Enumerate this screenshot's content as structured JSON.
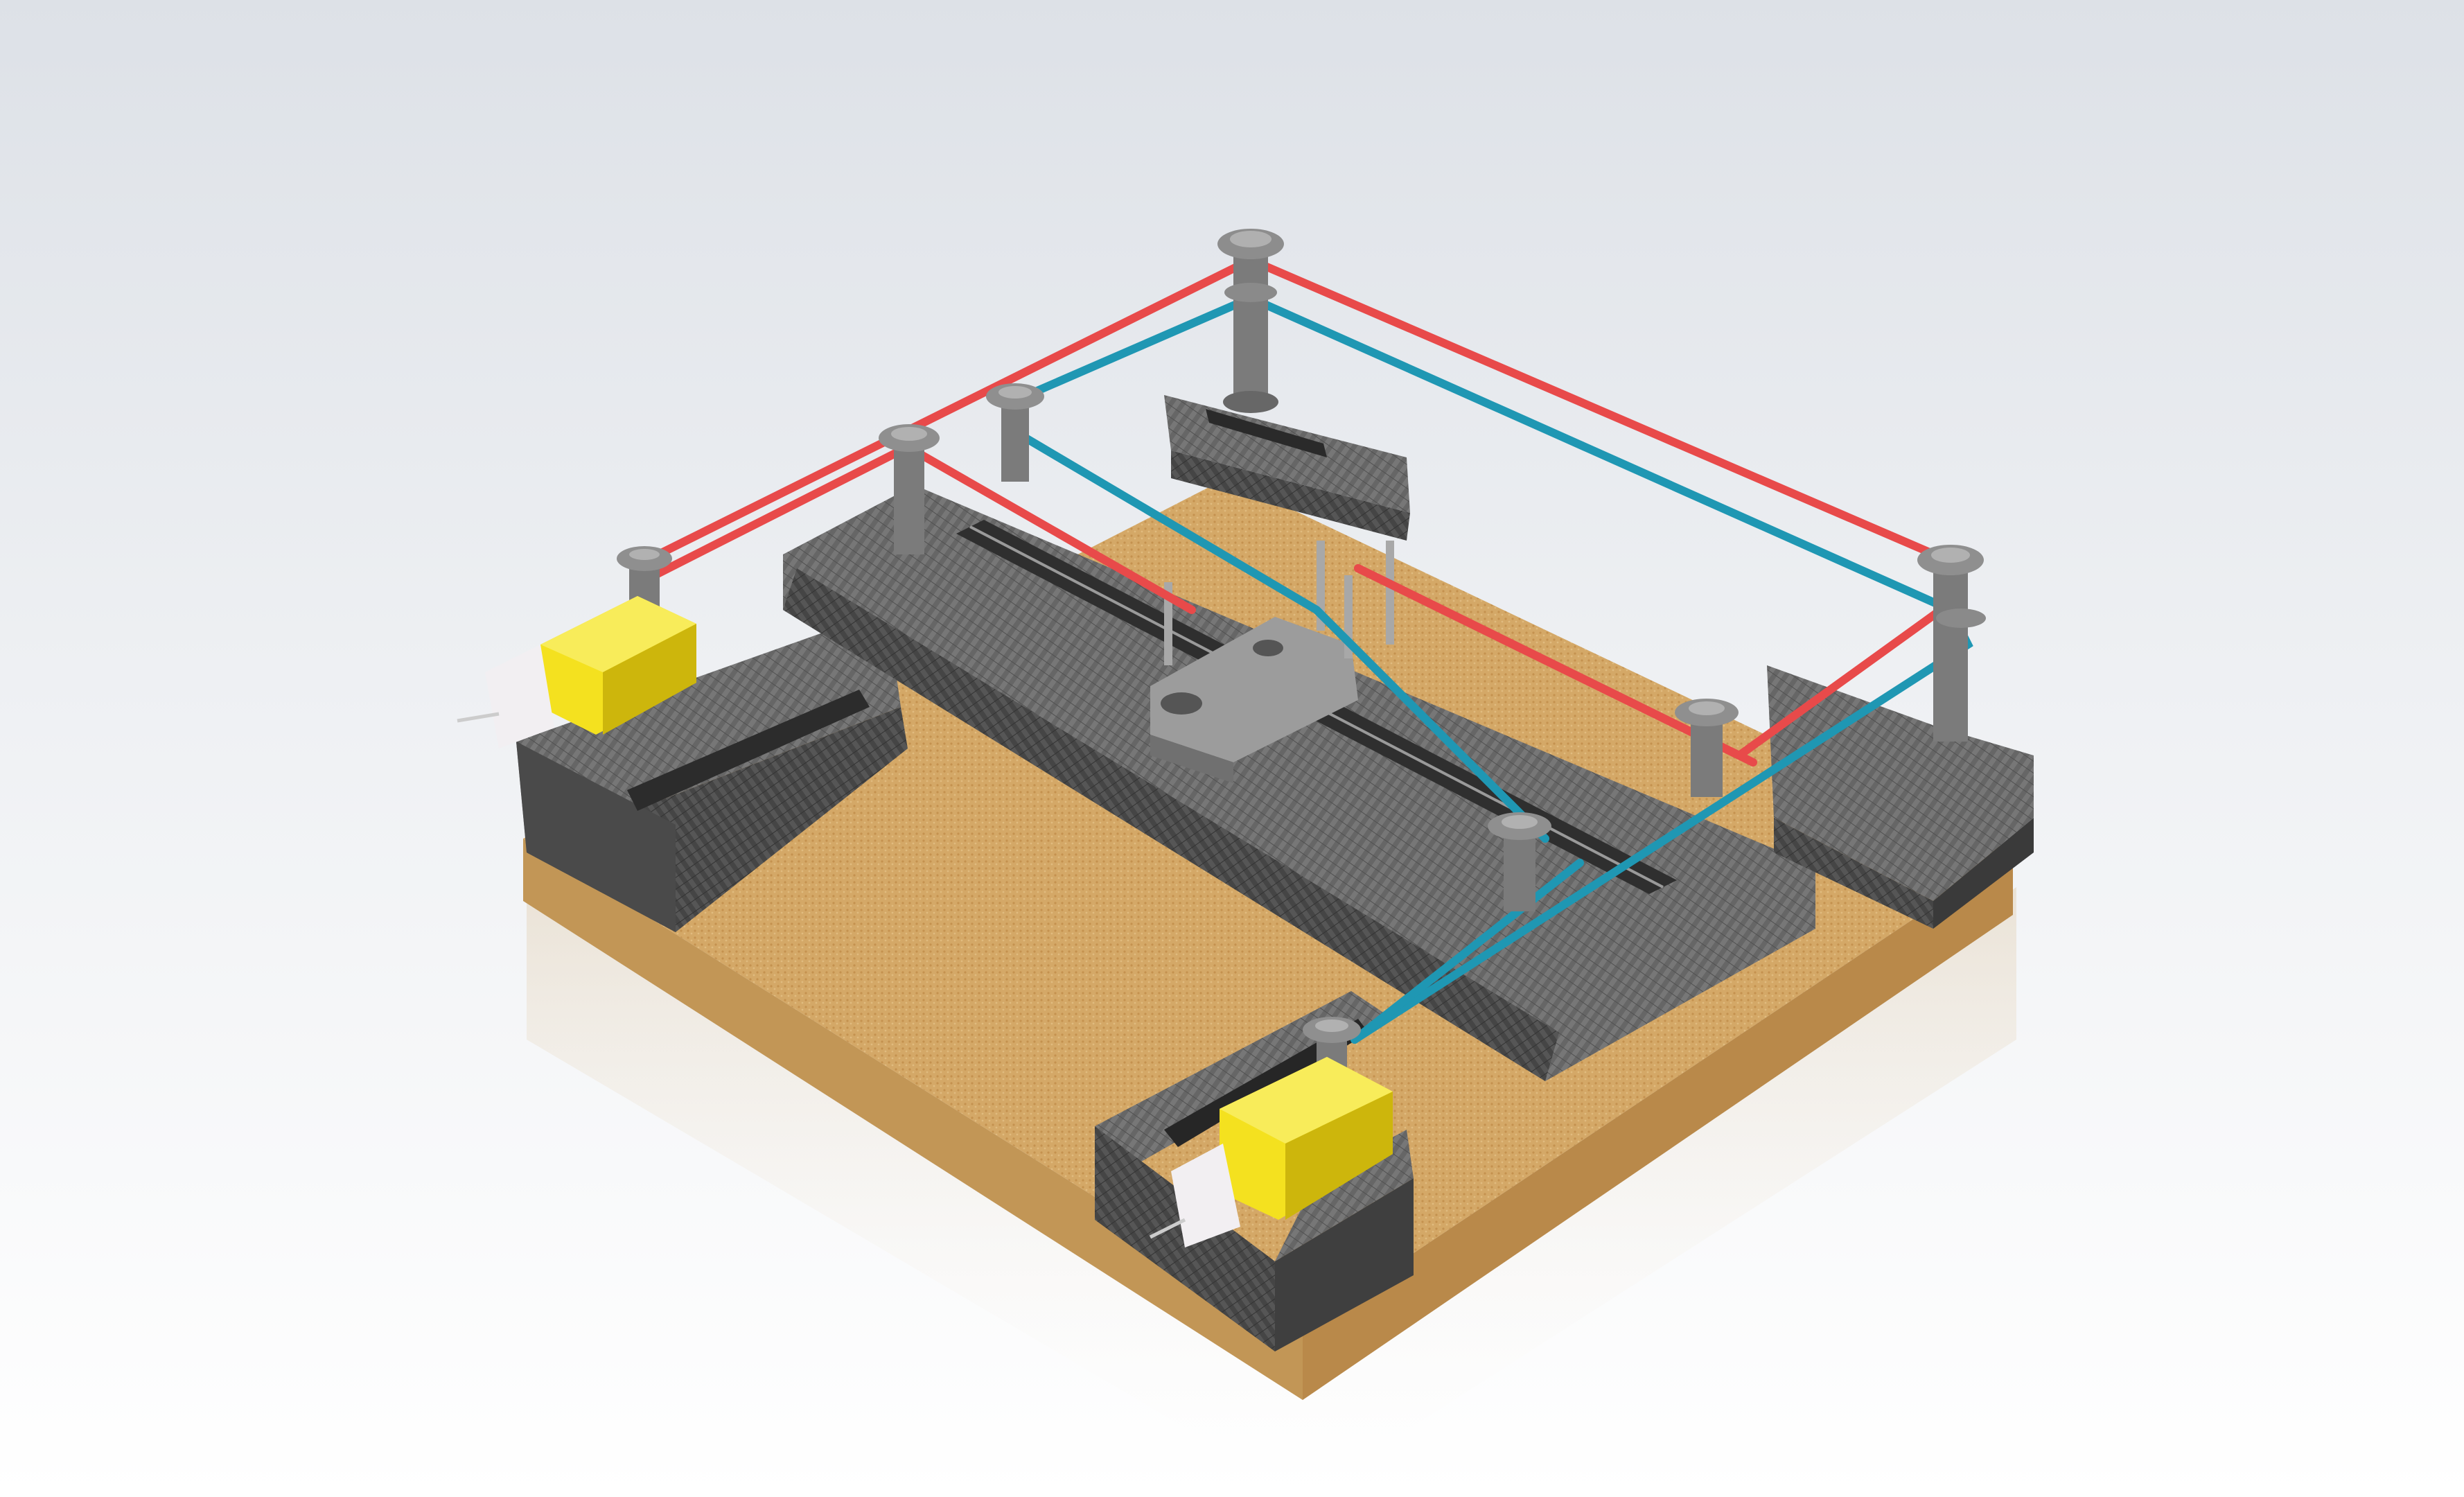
{
  "scene": {
    "description_name": "corexy-belt-gantry-render",
    "background": {
      "top": "#dde1e7",
      "middle": "#eef0f3",
      "bottom": "#ffffff"
    },
    "materials": {
      "board": "#d2a665",
      "board_dark": "#b8894a",
      "board_edge": "#c99a58",
      "carbon": "#6a6a6a",
      "carbon_dark": "#3e3e3e",
      "carbon_light": "#8a8a8a",
      "pulley": "#7b7b7b",
      "pulley_light": "#a3a3a3",
      "motor_yellow": "#f4e11f",
      "motor_yellow_dark": "#cdb60c",
      "motor_cap": "#f2eff2",
      "carriage": "#9a9a9a",
      "belt_red": "#e84a4a",
      "belt_blue": "#1f97b3"
    }
  }
}
